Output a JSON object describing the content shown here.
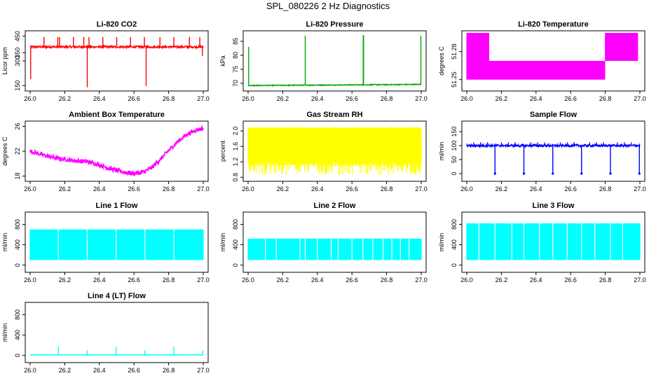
{
  "page_title": "SPL_080226  2 Hz Diagnostics",
  "chart_data": [
    {
      "type": "line",
      "title": "Li-820 CO2",
      "ylabel": "Licor ppm",
      "color": "#ff0000",
      "xlim": [
        26.0,
        27.0
      ],
      "ylim": [
        130,
        470
      ],
      "xticks": [
        "26.0",
        "26.2",
        "26.4",
        "26.6",
        "26.8",
        "27.0"
      ],
      "yticks": [
        150,
        300,
        350,
        450
      ],
      "ytick_labels": [
        "150",
        "300",
        "350",
        "450"
      ],
      "baseline": 385,
      "noise": 6,
      "spikes": [
        {
          "x": 26.003,
          "y": 190
        },
        {
          "x": 26.08,
          "y": 445
        },
        {
          "x": 26.16,
          "y": 445
        },
        {
          "x": 26.17,
          "y": 445
        },
        {
          "x": 26.25,
          "y": 445
        },
        {
          "x": 26.31,
          "y": 445
        },
        {
          "x": 26.33,
          "y": 140
        },
        {
          "x": 26.34,
          "y": 445
        },
        {
          "x": 26.42,
          "y": 445
        },
        {
          "x": 26.5,
          "y": 445
        },
        {
          "x": 26.58,
          "y": 445
        },
        {
          "x": 26.66,
          "y": 445
        },
        {
          "x": 26.67,
          "y": 148
        },
        {
          "x": 26.75,
          "y": 445
        },
        {
          "x": 26.83,
          "y": 445
        },
        {
          "x": 26.92,
          "y": 445
        },
        {
          "x": 26.98,
          "y": 445
        },
        {
          "x": 26.995,
          "y": 330
        }
      ]
    },
    {
      "type": "line",
      "title": "Li-820 Pressure",
      "ylabel": "kPa",
      "color": "#00aa00",
      "xlim": [
        26.0,
        27.0
      ],
      "ylim": [
        68,
        88
      ],
      "xticks": [
        "26.0",
        "26.2",
        "26.4",
        "26.6",
        "26.8",
        "27.0"
      ],
      "yticks": [
        70,
        75,
        80,
        85
      ],
      "ytick_labels": [
        "70",
        "75",
        "80",
        "85"
      ],
      "trend": [
        [
          26.0,
          69.2
        ],
        [
          27.0,
          69.6
        ]
      ],
      "noise": 0.15,
      "spikes": [
        {
          "x": 26.003,
          "y": 83
        },
        {
          "x": 26.33,
          "y": 87
        },
        {
          "x": 26.665,
          "y": 87.2
        },
        {
          "x": 26.667,
          "y": 87
        },
        {
          "x": 26.998,
          "y": 87
        }
      ]
    },
    {
      "type": "line",
      "title": "Li-820 Temperature",
      "ylabel": "degrees C",
      "color": "#ff00ff",
      "xlim": [
        26.0,
        27.0
      ],
      "ylim": [
        51.24,
        51.3
      ],
      "xticks": [
        "26.0",
        "26.2",
        "26.4",
        "26.6",
        "26.8",
        "27.0"
      ],
      "yticks": [
        51.25,
        51.28
      ],
      "ytick_labels": [
        "51.25",
        "51.28"
      ],
      "levels": [
        51.25,
        51.27,
        51.28,
        51.3
      ],
      "segments": [
        {
          "x0": 26.0,
          "x1": 26.13,
          "lo": 51.25,
          "hi": 51.3
        },
        {
          "x0": 26.13,
          "x1": 26.8,
          "lo": 51.25,
          "hi": 51.27
        },
        {
          "x0": 26.8,
          "x1": 26.99,
          "lo": 51.27,
          "hi": 51.3
        }
      ]
    },
    {
      "type": "line",
      "title": "Ambient Box Temperature",
      "ylabel": "degrees C",
      "color": "#ff00ff",
      "xlim": [
        26.0,
        27.0
      ],
      "ylim": [
        17.5,
        26.5
      ],
      "xticks": [
        "26.0",
        "26.2",
        "26.4",
        "26.6",
        "26.8",
        "27.0"
      ],
      "yticks": [
        18,
        22,
        26
      ],
      "ytick_labels": [
        "18",
        "22",
        "26"
      ],
      "x": [
        26.0,
        26.05,
        26.1,
        26.15,
        26.2,
        26.25,
        26.3,
        26.35,
        26.4,
        26.45,
        26.5,
        26.55,
        26.6,
        26.65,
        26.7,
        26.75,
        26.8,
        26.85,
        26.9,
        26.95,
        27.0
      ],
      "y": [
        22.0,
        21.6,
        21.2,
        20.9,
        20.7,
        20.5,
        20.4,
        20.2,
        19.8,
        19.3,
        18.9,
        18.6,
        18.4,
        18.6,
        19.3,
        20.6,
        22.1,
        23.5,
        24.6,
        25.3,
        25.7
      ],
      "noise": 0.35
    },
    {
      "type": "line",
      "title": "Gas Stream RH",
      "ylabel": "percent",
      "color": "#ffff00",
      "xlim": [
        26.0,
        27.0
      ],
      "ylim": [
        0.75,
        2.2
      ],
      "xticks": [
        "26.0",
        "26.2",
        "26.4",
        "26.6",
        "26.8",
        "27.0"
      ],
      "yticks": [
        0.8,
        1.2,
        1.6,
        2.0
      ],
      "ytick_labels": [
        "0.8",
        "1.2",
        "1.6",
        "2.0"
      ],
      "band": {
        "lo": 1.2,
        "hi": 2.1,
        "dips_to": 0.85
      }
    },
    {
      "type": "line",
      "title": "Sample Flow",
      "ylabel": "ml/min",
      "color": "#0000ff",
      "xlim": [
        26.0,
        27.0
      ],
      "ylim": [
        -20,
        180
      ],
      "xticks": [
        "26.0",
        "26.2",
        "26.4",
        "26.6",
        "26.8",
        "27.0"
      ],
      "yticks": [
        0,
        50,
        100,
        150
      ],
      "ytick_labels": [
        "0",
        "50",
        "100",
        "150"
      ],
      "baseline": 100,
      "noise": 4,
      "spikes_up": [
        26.04,
        26.08,
        26.12,
        26.2,
        26.24,
        26.28,
        26.37,
        26.41,
        26.45,
        26.54,
        26.58,
        26.62,
        26.71,
        26.75,
        26.79,
        26.87,
        26.91,
        26.95
      ],
      "dips": [
        26.163,
        26.33,
        26.497,
        26.663,
        26.83,
        26.997
      ]
    },
    {
      "type": "line",
      "title": "Line 1 Flow",
      "ylabel": "ml/min",
      "color": "#00ffff",
      "xlim": [
        26.0,
        27.0
      ],
      "ylim": [
        -100,
        1000
      ],
      "xticks": [
        "26.0",
        "26.2",
        "26.4",
        "26.6",
        "26.8",
        "27.0"
      ],
      "yticks": [
        0,
        400,
        800
      ],
      "ytick_labels": [
        "0",
        "400",
        "800"
      ],
      "band": {
        "lo": 100,
        "hi": 700
      },
      "gaps": [
        26.163,
        26.33,
        26.497,
        26.663,
        26.83
      ]
    },
    {
      "type": "line",
      "title": "Line 2 Flow",
      "ylabel": "ml/min",
      "color": "#00ffff",
      "xlim": [
        26.0,
        27.0
      ],
      "ylim": [
        -100,
        1000
      ],
      "xticks": [
        "26.0",
        "26.2",
        "26.4",
        "26.6",
        "26.8",
        "27.0"
      ],
      "yticks": [
        0,
        400,
        800
      ],
      "ytick_labels": [
        "0",
        "400",
        "800"
      ],
      "band": {
        "lo": 100,
        "hi": 520
      },
      "gaps": [
        26.1,
        26.163,
        26.3,
        26.33,
        26.4,
        26.48,
        26.52,
        26.6,
        26.663,
        26.72,
        26.78,
        26.83,
        26.88,
        26.93
      ]
    },
    {
      "type": "line",
      "title": "Line 3 Flow",
      "ylabel": "ml/min",
      "color": "#00ffff",
      "xlim": [
        26.0,
        27.0
      ],
      "ylim": [
        -100,
        1000
      ],
      "xticks": [
        "26.0",
        "26.2",
        "26.4",
        "26.6",
        "26.8",
        "27.0"
      ],
      "yticks": [
        0,
        400,
        800
      ],
      "ytick_labels": [
        "0",
        "400",
        "800"
      ],
      "band": {
        "lo": 100,
        "hi": 820
      },
      "gaps": [
        26.07,
        26.163,
        26.26,
        26.33,
        26.42,
        26.497,
        26.58,
        26.663,
        26.74,
        26.83,
        26.9
      ]
    },
    {
      "type": "line",
      "title": "Line 4 (LT) Flow",
      "ylabel": "ml/min",
      "color": "#00ffff",
      "xlim": [
        26.0,
        27.0
      ],
      "ylim": [
        -100,
        1000
      ],
      "xticks": [
        "26.0",
        "26.2",
        "26.4",
        "26.6",
        "26.8",
        "27.0"
      ],
      "yticks": [
        0,
        400,
        800
      ],
      "ytick_labels": [
        "0",
        "400",
        "800"
      ],
      "baseline": 10,
      "noise": 3,
      "spikes": [
        {
          "x": 26.163,
          "y": 170
        },
        {
          "x": 26.33,
          "y": 100
        },
        {
          "x": 26.497,
          "y": 170
        },
        {
          "x": 26.663,
          "y": 100
        },
        {
          "x": 26.83,
          "y": 170
        },
        {
          "x": 26.997,
          "y": 100
        }
      ]
    }
  ]
}
